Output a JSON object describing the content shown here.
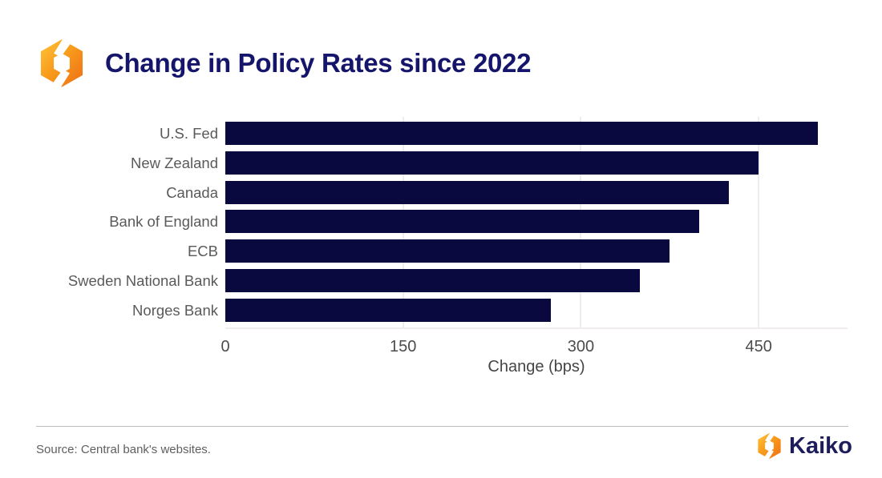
{
  "header": {
    "title": "Change in Policy Rates since 2022",
    "logo_icon": "kaiko-hexagon-swirl-icon"
  },
  "chart_data": {
    "type": "bar",
    "orientation": "horizontal",
    "title": "Change in Policy Rates since 2022",
    "categories": [
      "U.S. Fed",
      "New Zealand",
      "Canada",
      "Bank of England",
      "ECB",
      "Sweden National Bank",
      "Norges Bank"
    ],
    "values": [
      500,
      450,
      425,
      400,
      375,
      350,
      275
    ],
    "unit": "bps",
    "xlabel": "Change (bps)",
    "xticks": [
      0,
      150,
      300,
      450
    ],
    "xlim": [
      0,
      525
    ],
    "grid": "vertical-light-gray",
    "legend": "none",
    "bar_color": "#09093f"
  },
  "footer": {
    "source": "Source: Central bank's websites.",
    "brand_name": "Kaiko",
    "brand_icon": "kaiko-hexagon-swirl-icon"
  },
  "colors": {
    "title_navy": "#15156b",
    "bar_navy": "#09093f",
    "brand_navy": "#1d1d5c",
    "category_label_gray": "#5a5a5a",
    "tick_gray": "#4c4c4c",
    "gridline_gray": "#ededed",
    "divider_gray": "#bdbdbd",
    "logo_orange_light": "#ffc63a",
    "logo_orange_dark": "#ee6d15"
  }
}
